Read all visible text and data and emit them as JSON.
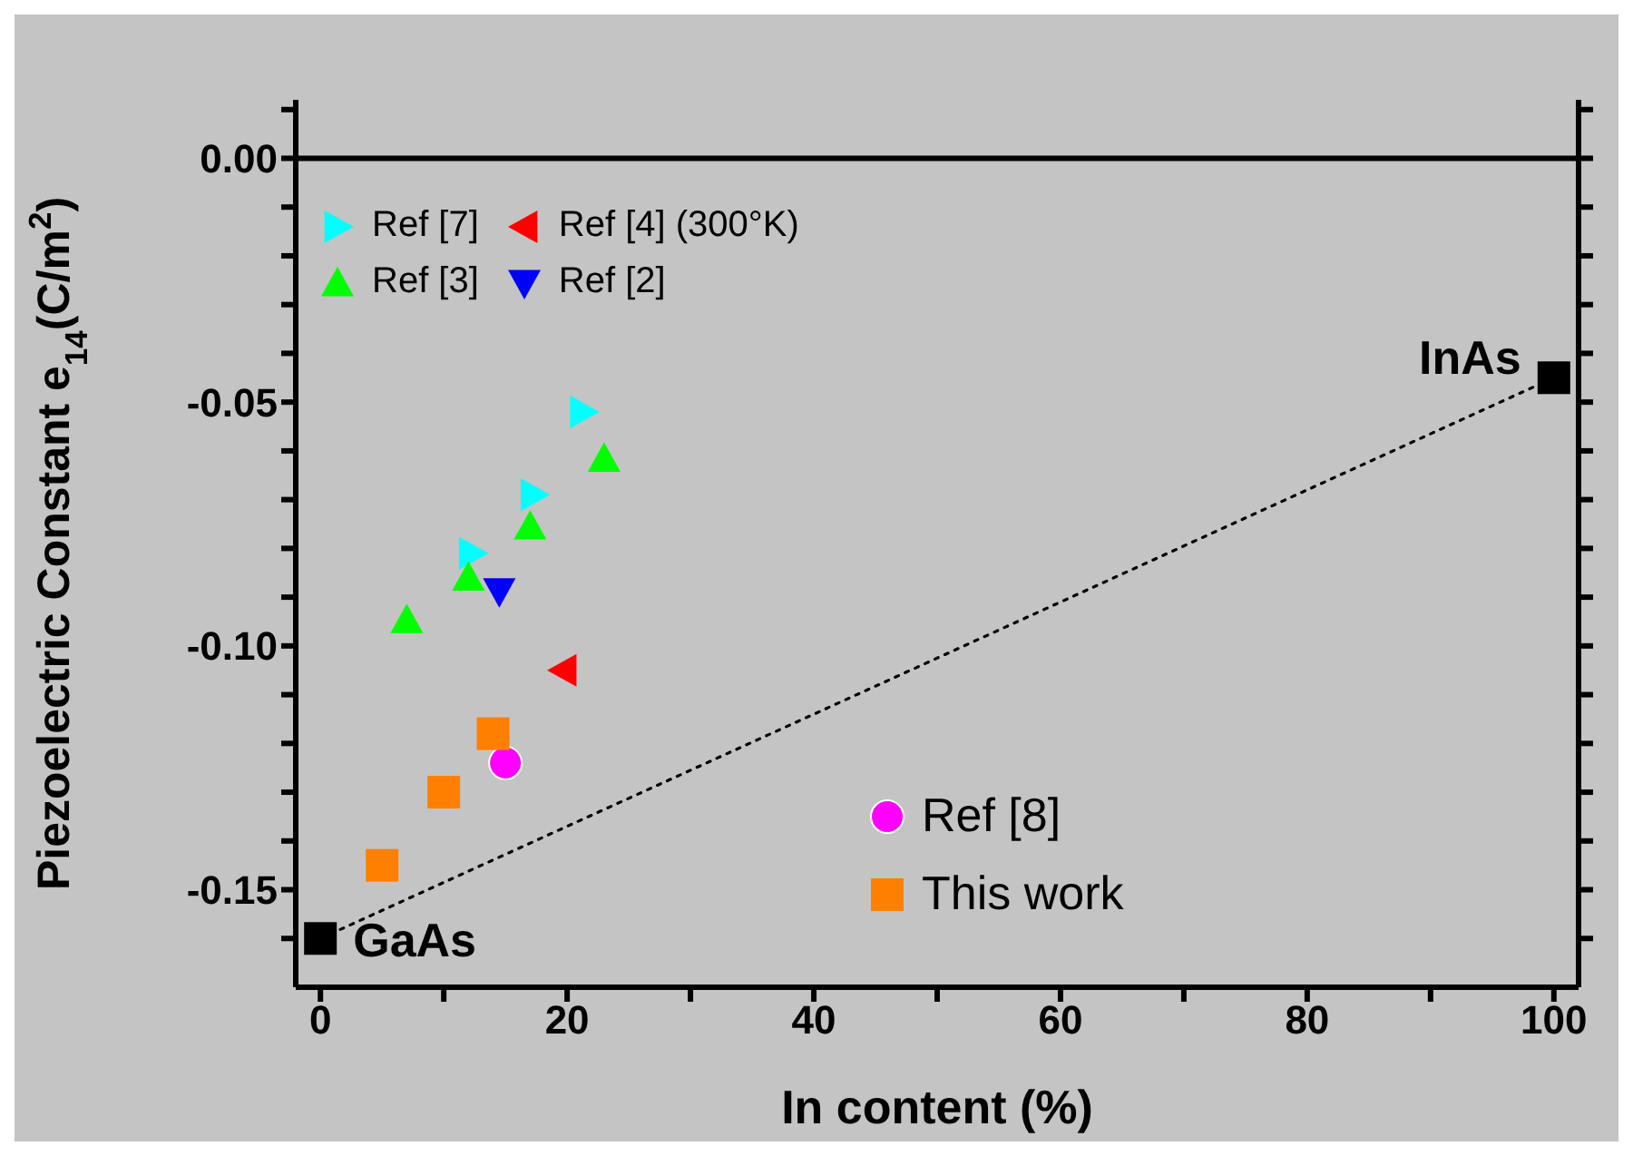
{
  "chart_data": {
    "type": "scatter",
    "xlabel": "In content (%)",
    "ylabel": "Piezoelectric Constant e$_{14}$(C/m$^{2}$)",
    "xlim": [
      -2,
      102
    ],
    "xticks": [
      0,
      {
        "value": 10,
        "label": null
      },
      20,
      {
        "value": 30,
        "label": null
      },
      40,
      {
        "value": 50,
        "label": null
      },
      60,
      {
        "value": 70,
        "label": null
      },
      80,
      {
        "value": 90,
        "label": null
      },
      100
    ],
    "ylim": [
      -0.17,
      0.012
    ],
    "yticks": [
      {
        "value": 0.01,
        "label": null
      },
      {
        "value": 0,
        "label": "0.00"
      },
      {
        "value": -0.01,
        "label": null
      },
      {
        "value": -0.02,
        "label": null
      },
      {
        "value": -0.03,
        "label": null
      },
      {
        "value": -0.04,
        "label": null
      },
      {
        "value": -0.05,
        "label": "-0.05"
      },
      {
        "value": -0.06,
        "label": null
      },
      {
        "value": -0.07,
        "label": null
      },
      {
        "value": -0.08,
        "label": null
      },
      {
        "value": -0.09,
        "label": null
      },
      {
        "value": -0.1,
        "label": "-0.10"
      },
      {
        "value": -0.11,
        "label": null
      },
      {
        "value": -0.12,
        "label": null
      },
      {
        "value": -0.13,
        "label": null
      },
      {
        "value": -0.14,
        "label": null
      },
      {
        "value": -0.15,
        "label": "-0.15"
      },
      {
        "value": -0.16,
        "label": null
      }
    ],
    "legend": "left",
    "ref_lines": [
      {
        "axis": "y",
        "value": 0,
        "color": "#000000",
        "line_style": "solid"
      }
    ],
    "series": [
      {
        "name": "Ref [7]",
        "color": "#00ffff",
        "marker": "triangle-right",
        "x": [
          12.3,
          17.3,
          21.3
        ],
        "values": [
          -0.081,
          -0.069,
          -0.052
        ]
      },
      {
        "name": "Ref [4] (300°K)",
        "color": "#ff0000",
        "marker": "triangle-left",
        "x": [
          19.7
        ],
        "values": [
          -0.105
        ]
      },
      {
        "name": "Ref [3]",
        "color": "#00ff00",
        "marker": "triangle",
        "x": [
          7,
          12,
          17,
          23
        ],
        "values": [
          -0.0947,
          -0.086,
          -0.0755,
          -0.0616
        ]
      },
      {
        "name": "Ref [2]",
        "color": "#0000ff",
        "marker": "triangle-down",
        "x": [
          14.5
        ],
        "values": [
          -0.0888
        ]
      },
      {
        "name": "Ref [8]",
        "color": "#ff00ff",
        "marker": "circle",
        "x": [
          15
        ],
        "values": [
          -0.124
        ]
      },
      {
        "name": "This work",
        "color": "#ff8000",
        "marker": "square",
        "x": [
          5,
          10,
          14
        ],
        "values": [
          -0.145,
          -0.13,
          -0.118
        ]
      },
      {
        "color": "#000000",
        "marker": "square",
        "x": [
          0,
          100
        ],
        "values": [
          -0.16,
          -0.045
        ]
      },
      {
        "type": "line",
        "color": "#000000",
        "line_style": "dotted",
        "marker": "none",
        "x": [
          0,
          100
        ],
        "values": [
          -0.16,
          -0.045
        ]
      }
    ],
    "annotations": [
      {
        "text": "GaAs",
        "x": 0,
        "y": -0.16
      },
      {
        "text": "InAs",
        "x": 100,
        "y": -0.045
      }
    ]
  }
}
